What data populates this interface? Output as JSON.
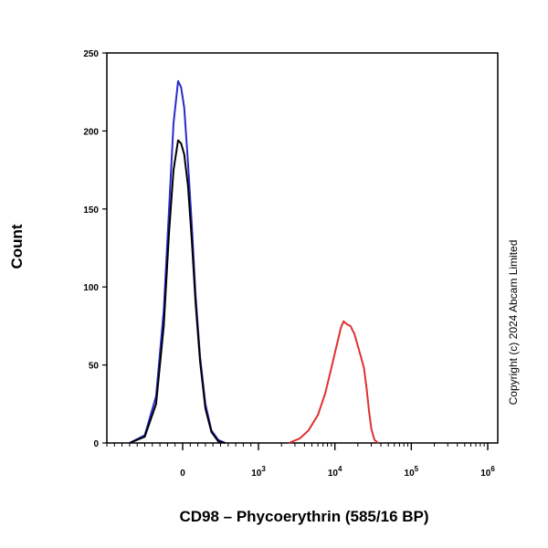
{
  "chart_data": {
    "type": "line",
    "title": "",
    "xlabel": "CD98 – Phycoerythrin (585/16 BP)",
    "ylabel": "Count",
    "x_scale": "biexponential",
    "xlim": [
      -1500,
      1000000
    ],
    "ylim": [
      0,
      250
    ],
    "y_ticks": [
      0,
      50,
      100,
      150,
      200,
      250
    ],
    "x_ticks": [
      {
        "value": 0,
        "base": "0",
        "exp": ""
      },
      {
        "value": 1000,
        "base": "10",
        "exp": "3"
      },
      {
        "value": 10000,
        "base": "10",
        "exp": "4"
      },
      {
        "value": 100000,
        "base": "10",
        "exp": "5"
      },
      {
        "value": 1000000,
        "base": "10",
        "exp": "6"
      }
    ],
    "grid": false,
    "legend": "none",
    "annotation": "Copyright (c) 2024 Abcam Limited",
    "series": [
      {
        "color": "#2a2acc",
        "points": [
          [
            -700,
            0
          ],
          [
            -500,
            5
          ],
          [
            -350,
            30
          ],
          [
            -250,
            85
          ],
          [
            -180,
            150
          ],
          [
            -120,
            205
          ],
          [
            -60,
            232
          ],
          [
            -20,
            228
          ],
          [
            20,
            215
          ],
          [
            70,
            180
          ],
          [
            120,
            140
          ],
          [
            170,
            95
          ],
          [
            230,
            55
          ],
          [
            300,
            25
          ],
          [
            380,
            8
          ],
          [
            470,
            2
          ],
          [
            560,
            0
          ]
        ]
      },
      {
        "color": "#000000",
        "points": [
          [
            -700,
            0
          ],
          [
            -500,
            4
          ],
          [
            -350,
            25
          ],
          [
            -250,
            75
          ],
          [
            -180,
            135
          ],
          [
            -120,
            175
          ],
          [
            -60,
            194
          ],
          [
            -20,
            192
          ],
          [
            20,
            185
          ],
          [
            70,
            165
          ],
          [
            120,
            130
          ],
          [
            170,
            90
          ],
          [
            230,
            52
          ],
          [
            300,
            22
          ],
          [
            380,
            7
          ],
          [
            470,
            1
          ],
          [
            560,
            0
          ]
        ]
      },
      {
        "color": "#e03030",
        "points": [
          [
            2500,
            0
          ],
          [
            3500,
            3
          ],
          [
            4500,
            8
          ],
          [
            6000,
            18
          ],
          [
            7500,
            32
          ],
          [
            9000,
            48
          ],
          [
            10500,
            62
          ],
          [
            12000,
            74
          ],
          [
            13000,
            78
          ],
          [
            14500,
            76
          ],
          [
            16000,
            75
          ],
          [
            18000,
            70
          ],
          [
            20000,
            62
          ],
          [
            22000,
            55
          ],
          [
            24000,
            48
          ],
          [
            26000,
            35
          ],
          [
            28000,
            20
          ],
          [
            30000,
            9
          ],
          [
            33000,
            2
          ],
          [
            37000,
            0
          ]
        ]
      }
    ]
  }
}
